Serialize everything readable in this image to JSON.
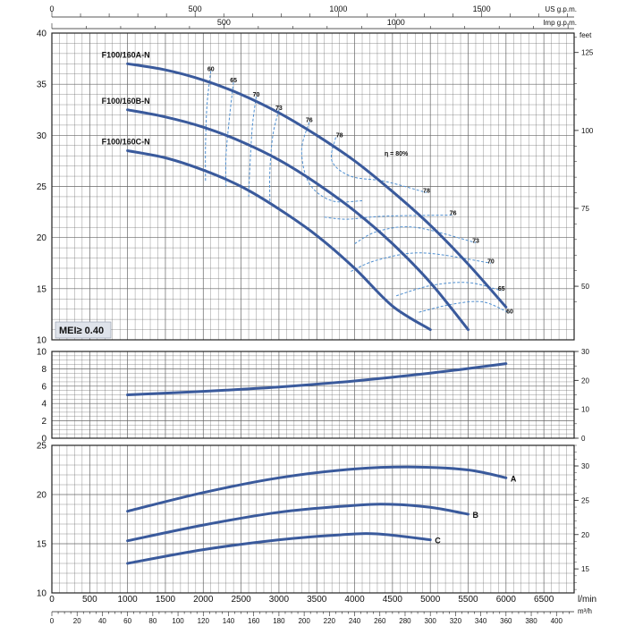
{
  "chart_data": [
    {
      "type": "line",
      "panel": "head",
      "ylim": [
        10,
        40
      ],
      "yticks": [
        10,
        15,
        20,
        25,
        30,
        35,
        40
      ],
      "xlim": [
        0,
        6900
      ],
      "right_axis": {
        "unit": "feet",
        "ticks": [
          50,
          75,
          100,
          125
        ]
      },
      "series": [
        {
          "name": "F100/160A-N",
          "x": [
            1000,
            1500,
            2000,
            2500,
            3000,
            3500,
            4000,
            4500,
            5000,
            5500,
            6000
          ],
          "y": [
            37.0,
            36.4,
            35.4,
            34.0,
            32.2,
            30.0,
            27.5,
            24.5,
            21.2,
            17.4,
            13.2
          ]
        },
        {
          "name": "F100/160B-N",
          "x": [
            1000,
            1500,
            2000,
            2500,
            3000,
            3500,
            4000,
            4500,
            5000,
            5500
          ],
          "y": [
            32.5,
            31.8,
            30.8,
            29.4,
            27.6,
            25.3,
            22.6,
            19.4,
            15.6,
            11.0
          ]
        },
        {
          "name": "F100/160C-N",
          "x": [
            1000,
            1500,
            2000,
            2500,
            3000,
            3500,
            4000,
            4500,
            5000
          ],
          "y": [
            28.5,
            27.8,
            26.6,
            25.0,
            22.8,
            20.2,
            17.0,
            13.3,
            11.0
          ]
        }
      ],
      "efficiency_labels": [
        {
          "text": "60",
          "x": 2100,
          "y": 36.3
        },
        {
          "text": "65",
          "x": 2400,
          "y": 35.2
        },
        {
          "text": "70",
          "x": 2700,
          "y": 33.8
        },
        {
          "text": "73",
          "x": 3000,
          "y": 32.5
        },
        {
          "text": "76",
          "x": 3400,
          "y": 31.3
        },
        {
          "text": "78",
          "x": 3800,
          "y": 29.8
        },
        {
          "text": "η = 80%",
          "x": 4550,
          "y": 28.0
        },
        {
          "text": "78",
          "x": 4950,
          "y": 24.4
        },
        {
          "text": "76",
          "x": 5300,
          "y": 22.2
        },
        {
          "text": "73",
          "x": 5600,
          "y": 19.5
        },
        {
          "text": "70",
          "x": 5800,
          "y": 17.5
        },
        {
          "text": "65",
          "x": 5940,
          "y": 14.8
        },
        {
          "text": "60",
          "x": 6050,
          "y": 12.6
        }
      ],
      "annotation": "MEI≥ 0.40"
    },
    {
      "type": "line",
      "panel": "power",
      "ylim": [
        0,
        10
      ],
      "yticks": [
        0,
        2,
        4,
        6,
        8,
        10
      ],
      "right_axis": {
        "ticks": [
          0,
          10,
          20,
          30
        ]
      },
      "series": [
        {
          "name": "",
          "x": [
            1000,
            2000,
            3000,
            4000,
            5000,
            6000
          ],
          "y": [
            5.0,
            5.4,
            5.9,
            6.6,
            7.5,
            8.6
          ]
        }
      ]
    },
    {
      "type": "line",
      "panel": "npsh",
      "ylim": [
        10,
        25
      ],
      "yticks": [
        10,
        15,
        20,
        25
      ],
      "right_axis": {
        "ticks": [
          15,
          20,
          25,
          30
        ]
      },
      "series": [
        {
          "name": "A",
          "x": [
            1000,
            2000,
            3000,
            4000,
            4800,
            5500,
            6000
          ],
          "y": [
            18.3,
            20.2,
            21.7,
            22.6,
            22.8,
            22.5,
            21.7
          ]
        },
        {
          "name": "B",
          "x": [
            1000,
            2000,
            3000,
            4000,
            4500,
            5000,
            5500
          ],
          "y": [
            15.3,
            16.9,
            18.2,
            18.9,
            19.0,
            18.7,
            18.0
          ]
        },
        {
          "name": "C",
          "x": [
            1000,
            2000,
            3000,
            3800,
            4300,
            5000
          ],
          "y": [
            13.0,
            14.4,
            15.4,
            15.9,
            16.0,
            15.4
          ]
        }
      ]
    }
  ],
  "axes": {
    "top_us_gpm": {
      "unit": "US g.p.m.",
      "ticks": [
        0,
        500,
        1000,
        1500
      ]
    },
    "top_imp_gpm": {
      "unit": "Imp g.p.m.",
      "ticks": [
        500,
        1000
      ]
    },
    "bottom_lmin": {
      "unit": "l/min",
      "ticks": [
        0,
        500,
        1000,
        1500,
        2000,
        2500,
        3000,
        3500,
        4000,
        4500,
        5000,
        5500,
        6000,
        6500
      ]
    },
    "bottom_m3h": {
      "unit": "m³/h",
      "ticks": [
        0,
        20,
        40,
        60,
        80,
        100,
        120,
        140,
        160,
        180,
        200,
        220,
        240,
        260,
        280,
        300,
        320,
        340,
        360,
        380,
        400
      ]
    }
  },
  "colors": {
    "curve": "#3a5a9c",
    "efficiency": "#4f8fd0",
    "grid": "#666666",
    "frame": "#222222"
  }
}
